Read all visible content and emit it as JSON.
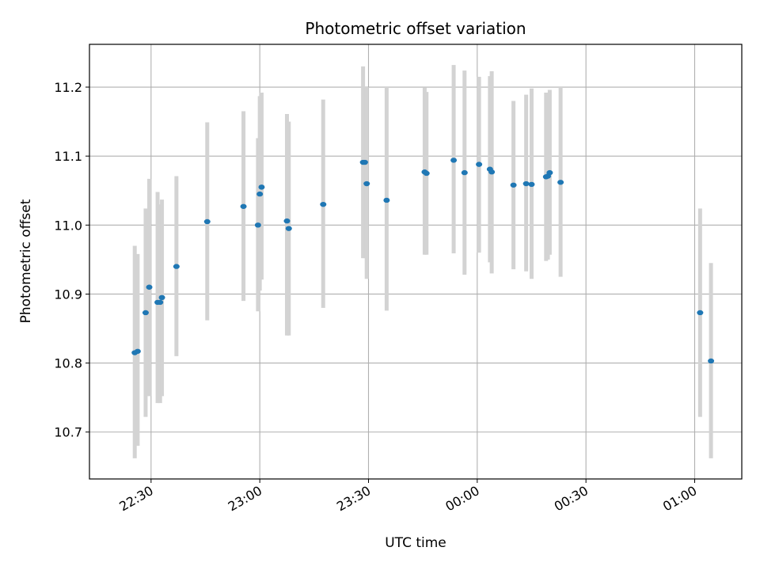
{
  "chart_data": {
    "type": "scatter",
    "title": "Photometric offset variation",
    "xlabel": "UTC time",
    "ylabel": "Photometric offset",
    "x_is_time": true,
    "xlim": [
      "22:13",
      "01:13"
    ],
    "ylim": [
      10.632,
      11.262
    ],
    "xticks": [
      "22:30",
      "23:00",
      "23:30",
      "00:00",
      "00:30",
      "01:00"
    ],
    "yticks": [
      10.7,
      10.8,
      10.9,
      11.0,
      11.1,
      11.2
    ],
    "grid": true,
    "errorbar_color": "#d3d3d3",
    "point_color": "#1f77b4",
    "points": [
      {
        "x": "22:25.5",
        "y": 10.815,
        "lo": 10.662,
        "hi": 10.97
      },
      {
        "x": "22:26.3",
        "y": 10.817,
        "lo": 10.68,
        "hi": 10.958
      },
      {
        "x": "22:28.5",
        "y": 10.873,
        "lo": 10.722,
        "hi": 11.024
      },
      {
        "x": "22:29.5",
        "y": 10.91,
        "lo": 10.752,
        "hi": 11.067
      },
      {
        "x": "22:31.8",
        "y": 10.888,
        "lo": 10.742,
        "hi": 11.048
      },
      {
        "x": "22:32.5",
        "y": 10.888,
        "lo": 10.742,
        "hi": 11.03
      },
      {
        "x": "22:33.0",
        "y": 10.895,
        "lo": 10.752,
        "hi": 11.037
      },
      {
        "x": "22:37.0",
        "y": 10.94,
        "lo": 10.81,
        "hi": 11.071
      },
      {
        "x": "22:45.5",
        "y": 11.005,
        "lo": 10.862,
        "hi": 11.149
      },
      {
        "x": "22:55.5",
        "y": 11.027,
        "lo": 10.89,
        "hi": 11.165
      },
      {
        "x": "22:59.5",
        "y": 11.0,
        "lo": 10.875,
        "hi": 11.126
      },
      {
        "x": "23:00.0",
        "y": 11.045,
        "lo": 10.905,
        "hi": 11.187
      },
      {
        "x": "23:00.5",
        "y": 11.055,
        "lo": 10.921,
        "hi": 11.192
      },
      {
        "x": "23:07.5",
        "y": 11.006,
        "lo": 10.84,
        "hi": 11.161
      },
      {
        "x": "23:08.0",
        "y": 10.995,
        "lo": 10.84,
        "hi": 11.15
      },
      {
        "x": "23:17.5",
        "y": 11.03,
        "lo": 10.88,
        "hi": 11.182
      },
      {
        "x": "23:28.5",
        "y": 11.091,
        "lo": 10.952,
        "hi": 11.23
      },
      {
        "x": "23:29.0",
        "y": 11.091,
        "lo": 10.952,
        "hi": 11.2
      },
      {
        "x": "23:29.5",
        "y": 11.06,
        "lo": 10.922,
        "hi": 11.2
      },
      {
        "x": "23:35.0",
        "y": 11.036,
        "lo": 10.876,
        "hi": 11.2
      },
      {
        "x": "23:45.5",
        "y": 11.077,
        "lo": 10.957,
        "hi": 11.199
      },
      {
        "x": "23:46.0",
        "y": 11.075,
        "lo": 10.957,
        "hi": 11.193
      },
      {
        "x": "23:53.5",
        "y": 11.094,
        "lo": 10.959,
        "hi": 11.232
      },
      {
        "x": "23:56.5",
        "y": 11.076,
        "lo": 10.928,
        "hi": 11.224
      },
      {
        "x": "00:00.5",
        "y": 11.088,
        "lo": 10.96,
        "hi": 11.215
      },
      {
        "x": "00:03.5",
        "y": 11.081,
        "lo": 10.946,
        "hi": 11.216
      },
      {
        "x": "00:04.0",
        "y": 11.077,
        "lo": 10.93,
        "hi": 11.223
      },
      {
        "x": "00:10.0",
        "y": 11.058,
        "lo": 10.936,
        "hi": 11.18
      },
      {
        "x": "00:13.5",
        "y": 11.06,
        "lo": 10.933,
        "hi": 11.189
      },
      {
        "x": "00:15.0",
        "y": 11.059,
        "lo": 10.922,
        "hi": 11.198
      },
      {
        "x": "00:19.0",
        "y": 11.07,
        "lo": 10.948,
        "hi": 11.192
      },
      {
        "x": "00:19.5",
        "y": 11.071,
        "lo": 10.95,
        "hi": 11.192
      },
      {
        "x": "00:20.0",
        "y": 11.076,
        "lo": 10.957,
        "hi": 11.196
      },
      {
        "x": "00:23.0",
        "y": 11.062,
        "lo": 10.925,
        "hi": 11.2
      },
      {
        "x": "01:01.5",
        "y": 10.873,
        "lo": 10.722,
        "hi": 11.024
      },
      {
        "x": "01:04.5",
        "y": 10.803,
        "lo": 10.662,
        "hi": 10.945
      }
    ]
  }
}
